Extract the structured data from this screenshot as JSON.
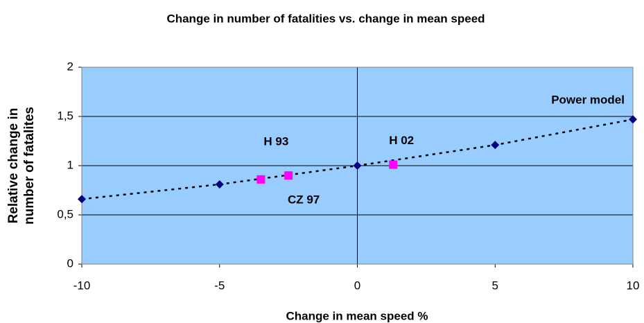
{
  "chart_data": {
    "type": "scatter",
    "title": "Change in number of fatalities vs. change in mean speed",
    "xlabel": "Change in mean speed %",
    "ylabel": [
      "Relative change in",
      "number of fatalites"
    ],
    "xlim": [
      -10,
      10
    ],
    "ylim": [
      0,
      2
    ],
    "xticks": [
      -10,
      -5,
      0,
      5,
      10
    ],
    "yticks": [
      0,
      {
        "value": 0.5,
        "label": "0,5"
      },
      1,
      {
        "value": 1.5,
        "label": "1,5"
      },
      2
    ],
    "grid": true,
    "background": "#99ccff",
    "series": [
      {
        "name": "Power model",
        "color": "#000080",
        "marker": "diamond",
        "line": "dotted",
        "x": [
          -10,
          -5,
          0,
          5,
          10
        ],
        "values": [
          0.66,
          0.81,
          1.0,
          1.21,
          1.47
        ]
      },
      {
        "color": "#ff00ff",
        "marker": "square",
        "x": [
          -3.5,
          -2.5,
          1.3
        ],
        "values": [
          0.86,
          0.9,
          1.01
        ],
        "point_labels": [
          "H 93",
          "CZ 97",
          "H 02"
        ]
      }
    ]
  }
}
